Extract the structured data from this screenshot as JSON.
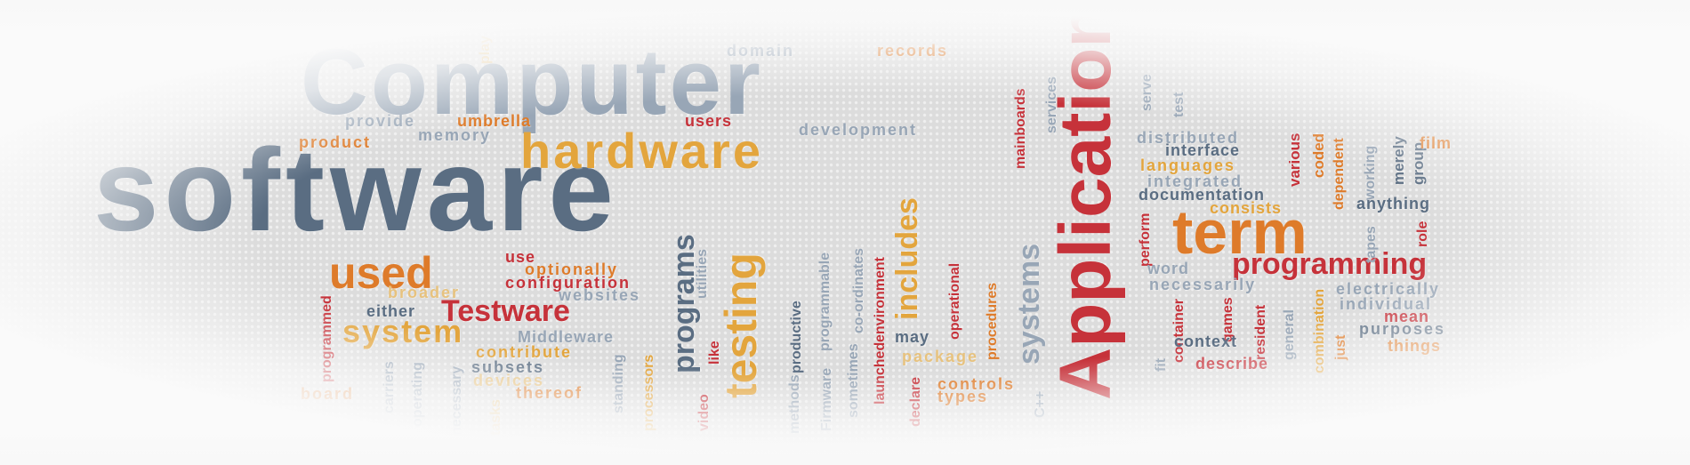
{
  "colors": {
    "slate": "#5a6d82",
    "light_slate": "#98a6b6",
    "orange": "#de7b2a",
    "gold": "#e3a53d",
    "red": "#c6323a",
    "pale_gold": "#e7c27e"
  },
  "words": {
    "computer": "Computer",
    "software": "software",
    "hardware": "hardware",
    "application": "Application",
    "term": "term",
    "programming": "programming",
    "used": "used",
    "testware": "Testware",
    "system": "system",
    "testing": "testing",
    "programs": "programs",
    "includes": "includes",
    "systems": "systems",
    "domain": "domain",
    "records": "records",
    "play": "play",
    "provide": "provide",
    "umbrella": "umbrella",
    "users": "users",
    "memory": "memory",
    "product": "product",
    "development": "development",
    "mainboards": "mainboards",
    "services": "services",
    "serve": "serve",
    "test": "test",
    "distributed": "distributed",
    "interface": "interface",
    "languages": "languages",
    "integrated": "integrated",
    "documentation": "documentation",
    "consists": "consists",
    "various": "various",
    "coded": "coded",
    "dependent": "dependent",
    "working": "working",
    "merely": "merely",
    "group": "group",
    "film": "film",
    "anything": "anything",
    "tapes": "tapes",
    "role": "role",
    "perform": "perform",
    "word": "word",
    "necessarily": "necessarily",
    "electrically": "electrically",
    "individual": "individual",
    "mean": "mean",
    "purposes": "purposes",
    "things": "things",
    "container": "container",
    "games": "games",
    "resident": "resident",
    "general": "general",
    "combination": "combination",
    "just": "just",
    "fit": "fit",
    "context": "context",
    "describe": "describe",
    "use": "use",
    "optionally": "optionally",
    "configuration": "configuration",
    "broader": "broader",
    "websites": "websites",
    "either": "either",
    "middleware": "Middleware",
    "contribute": "contribute",
    "subsets": "subsets",
    "devices": "devices",
    "thereof": "thereof",
    "programmed": "programmed",
    "board": "board",
    "carriers": "carriers",
    "operating": "operating",
    "necessary": "necessary",
    "tasks": "tasks",
    "standing": "standing",
    "processors": "processors",
    "video": "video",
    "like": "like",
    "utilities": "utilities",
    "methods": "methods",
    "productive": "productive",
    "firmware": "Firmware",
    "programmable": "programmable",
    "sometimes": "sometimes",
    "co_ordinates": "co-ordinates",
    "launched": "launched",
    "environment": "environment",
    "declare": "declare",
    "may": "may",
    "package": "package",
    "controls": "controls",
    "types": "types",
    "operational": "operational",
    "procedures": "procedures",
    "cpp": "C++"
  }
}
